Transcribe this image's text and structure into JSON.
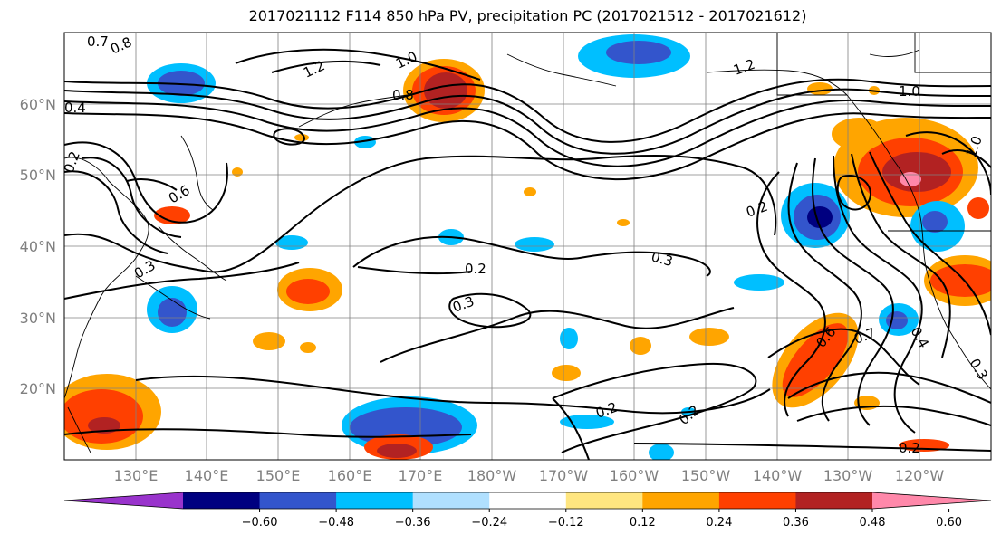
{
  "title": "2017021112 F114 850 hPa PV, precipitation PC (2017021512 - 2017021612)",
  "lat_labels": [
    "60°N",
    "50°N",
    "40°N",
    "30°N",
    "20°N"
  ],
  "lon_labels": [
    "130°E",
    "140°E",
    "150°E",
    "160°E",
    "170°E",
    "180°W",
    "170°W",
    "160°W",
    "150°W",
    "140°W",
    "130°W",
    "120°W"
  ],
  "colorbar": {
    "colors": [
      "#9933cc",
      "#000080",
      "#3355cc",
      "#00bfff",
      "#b0e0ff",
      "#ffffff",
      "#ffe680",
      "#ffa500",
      "#ff4000",
      "#b22222",
      "#ff88aa"
    ],
    "tick_labels": [
      "−0.60",
      "−0.48",
      "−0.36",
      "−0.24",
      "−0.12",
      "0.12",
      "0.24",
      "0.36",
      "0.48",
      "0.60"
    ]
  },
  "contour_labels": [
    "0.7",
    "0.8",
    "1.2",
    "1.0",
    "0.8",
    "1.2",
    "1.0",
    "1.0",
    "0.4",
    "0.2",
    "0.6",
    "0.3",
    "0.2",
    "0.3",
    "0.3",
    "0.2",
    "0.2",
    "0.2",
    "0.4",
    "0.6",
    "0.7",
    "0.3",
    "0.2"
  ]
}
